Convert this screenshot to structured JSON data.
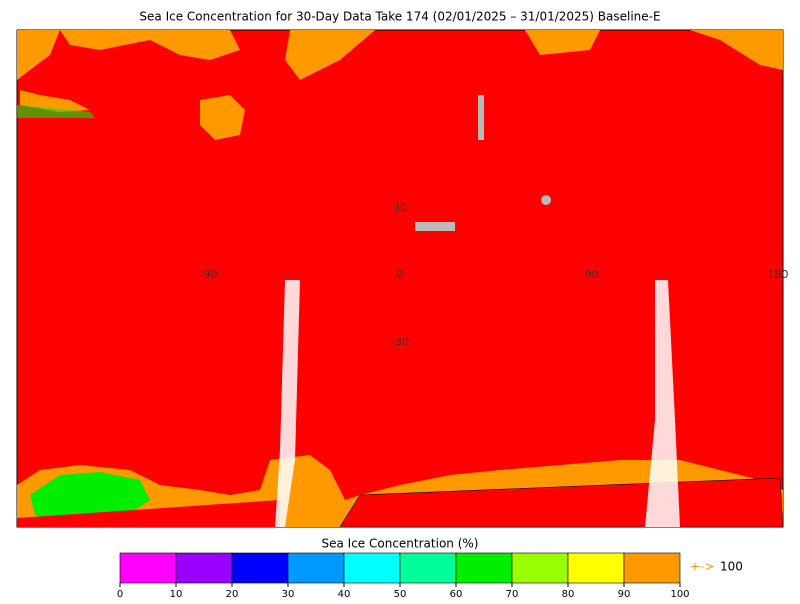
{
  "map": {
    "title": "Sea Ice Concentration for 30-Day Data Take 174 (02/01/2025 – 31/01/2025) Baseline-E",
    "lon_labels": [
      -90,
      0,
      90,
      180
    ],
    "lat_labels": [
      30,
      -30
    ],
    "colorbar": {
      "title": "Sea Ice Concentration (%)",
      "ticks": [
        0,
        10,
        20,
        30,
        40,
        50,
        60,
        70,
        80,
        90,
        100
      ],
      "colors": [
        "#ff00ff",
        "#9900ff",
        "#0000ff",
        "#0099ff",
        "#00ffff",
        "#00ff99",
        "#00ee00",
        "#99ff00",
        "#ffff00",
        "#ff9900"
      ],
      "overflow_arrow": "+->",
      "overflow_value": 100
    }
  }
}
